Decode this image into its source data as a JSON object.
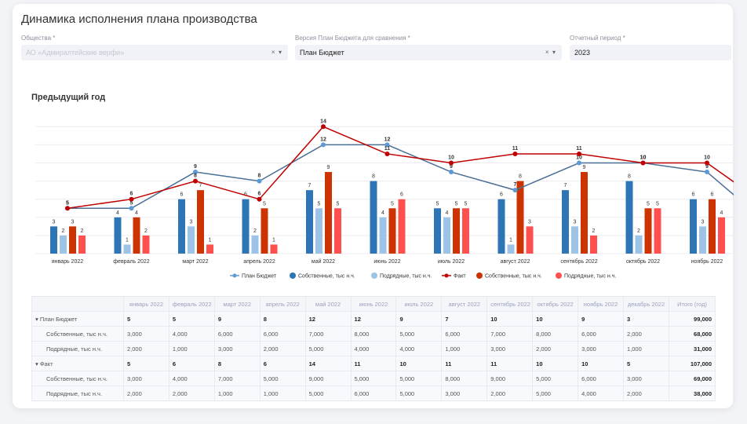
{
  "title": "Динамика исполнения плана производства",
  "filters": {
    "company": {
      "label": "Общества *",
      "value": "АО «Адмиралтейские верфи»"
    },
    "budget_version": {
      "label": "Версия План Бюджета для сравнения *",
      "value": "План Бюджет"
    },
    "period": {
      "label": "Отчетный период *",
      "value": "2023"
    },
    "clear_icon": "×",
    "dropdown_icon": "▾"
  },
  "section_title": "Предыдущий год",
  "colors": {
    "plan_line": "#4a6f96",
    "plan_marker": "#5b9bd5",
    "plan_own": "#2e75b6",
    "plan_sub": "#9dc3e6",
    "fact_line": "#c00000",
    "fact_own": "#cc3300",
    "fact_sub": "#ff5050"
  },
  "chart_data": {
    "type": "bar+line",
    "categories": [
      "январь 2022",
      "февраль 2022",
      "март 2022",
      "апрель 2022",
      "май 2022",
      "июнь 2022",
      "июль 2022",
      "август 2022",
      "сентябрь 2022",
      "октябрь 2022",
      "ноябрь 2022",
      "декабрь 2022"
    ],
    "ylim": [
      0,
      14
    ],
    "grid": true,
    "legend": "bottom",
    "series": [
      {
        "name": "План Бюджет",
        "kind": "line",
        "values": [
          5,
          5,
          9,
          8,
          12,
          12,
          9,
          7,
          10,
          10,
          9,
          3
        ]
      },
      {
        "name": "Собственные, тыс н.ч.",
        "kind": "bar",
        "values": [
          3,
          4,
          6,
          6,
          7,
          8,
          5,
          6,
          7,
          8,
          6,
          2
        ]
      },
      {
        "name": "Подрядные, тыс н.ч.",
        "kind": "bar",
        "values": [
          2,
          1,
          3,
          2,
          5,
          4,
          4,
          1,
          3,
          2,
          3,
          1
        ]
      },
      {
        "name": "Факт",
        "kind": "line",
        "values": [
          5,
          6,
          8,
          6,
          14,
          11,
          10,
          11,
          11,
          10,
          10,
          5
        ]
      },
      {
        "name": "Собственные, тыс н.ч.",
        "kind": "bar",
        "values": [
          3,
          4,
          7,
          5,
          9,
          5,
          5,
          8,
          9,
          5,
          6,
          3
        ]
      },
      {
        "name": "Подрядные, тыс н.ч.",
        "kind": "bar",
        "values": [
          2,
          2,
          1,
          1,
          5,
          6,
          5,
          3,
          2,
          5,
          4,
          2
        ]
      }
    ]
  },
  "table": {
    "headers": [
      "",
      "январь 2022",
      "февраль 2022",
      "март 2022",
      "апрель 2022",
      "май 2022",
      "июнь 2022",
      "июль 2022",
      "август 2022",
      "сентябрь 2022",
      "октябрь 2022",
      "ноябрь 2022",
      "декабрь 2022",
      "Итого (год)"
    ],
    "rows": [
      {
        "label": "▾ План Бюджет",
        "group": true,
        "values": [
          "5",
          "5",
          "9",
          "8",
          "12",
          "12",
          "9",
          "7",
          "10",
          "10",
          "9",
          "3"
        ],
        "total": "99,000"
      },
      {
        "label": "Собственные, тыс н.ч.",
        "values": [
          "3,000",
          "4,000",
          "6,000",
          "6,000",
          "7,000",
          "8,000",
          "5,000",
          "6,000",
          "7,000",
          "8,000",
          "6,000",
          "2,000"
        ],
        "total": "68,000"
      },
      {
        "label": "Подрядные, тыс н.ч.",
        "values": [
          "2,000",
          "1,000",
          "3,000",
          "2,000",
          "5,000",
          "4,000",
          "4,000",
          "1,000",
          "3,000",
          "2,000",
          "3,000",
          "1,000"
        ],
        "total": "31,000"
      },
      {
        "label": "▾ Факт",
        "group": true,
        "values": [
          "5",
          "6",
          "8",
          "6",
          "14",
          "11",
          "10",
          "11",
          "11",
          "10",
          "10",
          "5"
        ],
        "total": "107,000"
      },
      {
        "label": "Собственные, тыс н.ч.",
        "values": [
          "3,000",
          "4,000",
          "7,000",
          "5,000",
          "9,000",
          "5,000",
          "5,000",
          "8,000",
          "9,000",
          "5,000",
          "6,000",
          "3,000"
        ],
        "total": "69,000"
      },
      {
        "label": "Подрядные, тыс н.ч.",
        "values": [
          "2,000",
          "2,000",
          "1,000",
          "1,000",
          "5,000",
          "6,000",
          "5,000",
          "3,000",
          "2,000",
          "5,000",
          "4,000",
          "2,000"
        ],
        "total": "38,000"
      }
    ]
  }
}
